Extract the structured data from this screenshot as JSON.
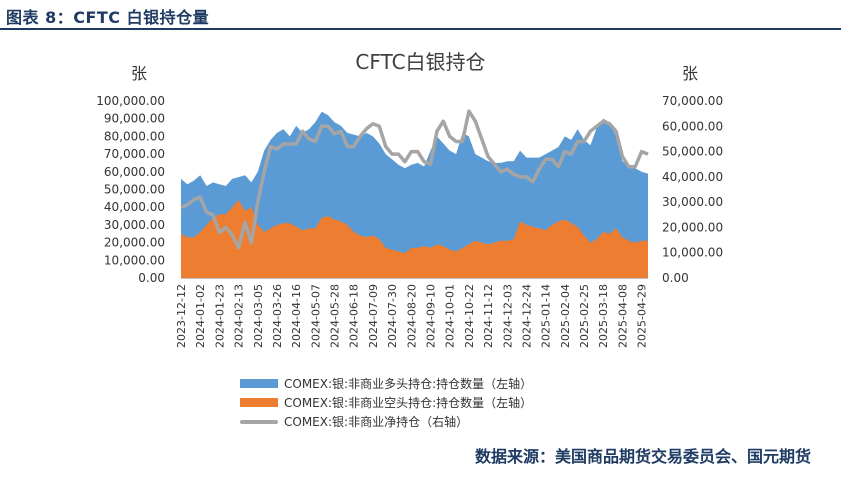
{
  "figure_title": "图表 8：CFTC 白银持仓量",
  "chart_title": "CFTC白银持仓",
  "left_unit": "张",
  "right_unit": "张",
  "source": "数据来源：美国商品期货交易委员会、国元期货",
  "chart_data": {
    "type": "area",
    "x": [
      "2023-12-12",
      "2023-12-19",
      "2023-12-26",
      "2024-01-02",
      "2024-01-09",
      "2024-01-16",
      "2024-01-23",
      "2024-01-30",
      "2024-02-06",
      "2024-02-13",
      "2024-02-20",
      "2024-02-27",
      "2024-03-05",
      "2024-03-12",
      "2024-03-19",
      "2024-03-26",
      "2024-04-02",
      "2024-04-09",
      "2024-04-16",
      "2024-04-23",
      "2024-04-30",
      "2024-05-07",
      "2024-05-14",
      "2024-05-21",
      "2024-05-28",
      "2024-06-04",
      "2024-06-11",
      "2024-06-18",
      "2024-06-25",
      "2024-07-02",
      "2024-07-09",
      "2024-07-16",
      "2024-07-23",
      "2024-07-30",
      "2024-08-06",
      "2024-08-13",
      "2024-08-20",
      "2024-08-27",
      "2024-09-03",
      "2024-09-10",
      "2024-09-17",
      "2024-09-24",
      "2024-10-01",
      "2024-10-08",
      "2024-10-15",
      "2024-10-22",
      "2024-10-29",
      "2024-11-05",
      "2024-11-12",
      "2024-11-19",
      "2024-11-26",
      "2024-12-03",
      "2024-12-10",
      "2024-12-17",
      "2024-12-24",
      "2024-12-31",
      "2025-01-07",
      "2025-01-14",
      "2025-01-21",
      "2025-01-28",
      "2025-02-04",
      "2025-02-11",
      "2025-02-18",
      "2025-02-25",
      "2025-03-04",
      "2025-03-11",
      "2025-03-18",
      "2025-03-25",
      "2025-04-01",
      "2025-04-08",
      "2025-04-15",
      "2025-04-22",
      "2025-04-29",
      "2025-05-06"
    ],
    "x_tick_labels": [
      "2023-12-12",
      "2024-01-02",
      "2024-01-23",
      "2024-02-13",
      "2024-03-05",
      "2024-03-26",
      "2024-04-16",
      "2024-05-07",
      "2024-05-28",
      "2024-06-18",
      "2024-07-09",
      "2024-07-30",
      "2024-08-20",
      "2024-09-10",
      "2024-10-01",
      "2024-10-22",
      "2024-11-12",
      "2024-12-03",
      "2024-12-24",
      "2025-01-14",
      "2025-02-04",
      "2025-02-25",
      "2025-03-18",
      "2025-04-08",
      "2025-04-29"
    ],
    "y_left": {
      "min": 0,
      "max": 100000,
      "step": 10000,
      "tick_labels": [
        "0.00",
        "10,000.00",
        "20,000.00",
        "30,000.00",
        "40,000.00",
        "50,000.00",
        "60,000.00",
        "70,000.00",
        "80,000.00",
        "90,000.00",
        "100,000.00"
      ]
    },
    "y_right": {
      "min": 0,
      "max": 70000,
      "step": 10000,
      "tick_labels": [
        "0.00",
        "10,000.00",
        "20,000.00",
        "30,000.00",
        "40,000.00",
        "50,000.00",
        "60,000.00",
        "70,000.00"
      ]
    },
    "series": [
      {
        "name": "COMEX:银:非商业多头持仓:持仓数量（左轴）",
        "type": "area",
        "axis": "left",
        "color": "#5b9bd5",
        "values": [
          56000,
          53000,
          55000,
          58000,
          52000,
          54000,
          53000,
          52000,
          56000,
          57000,
          58000,
          54000,
          60000,
          72000,
          78000,
          82000,
          84000,
          80000,
          86000,
          82000,
          84000,
          88000,
          94000,
          92000,
          88000,
          86000,
          82000,
          81000,
          80000,
          82000,
          80000,
          76000,
          70000,
          67000,
          64000,
          62000,
          64000,
          65000,
          63000,
          72000,
          80000,
          76000,
          72000,
          70000,
          82000,
          80000,
          70000,
          68000,
          66000,
          65000,
          65000,
          66000,
          66000,
          72000,
          68000,
          68000,
          68000,
          70000,
          72000,
          74000,
          80000,
          78000,
          84000,
          78000,
          75000,
          85000,
          90000,
          88000,
          80000,
          66000,
          64000,
          62000,
          60000,
          59000
        ]
      },
      {
        "name": "COMEX:银:非商业空头持仓:持仓数量（左轴）",
        "type": "area",
        "axis": "left",
        "color": "#ed7d31",
        "values": [
          25000,
          23000,
          23000,
          26000,
          30000,
          34000,
          36000,
          36000,
          40000,
          44000,
          38000,
          40000,
          30000,
          26000,
          28000,
          30000,
          31000,
          31000,
          29000,
          27000,
          28000,
          28000,
          34000,
          35000,
          33000,
          32000,
          30000,
          26000,
          24000,
          23000,
          24000,
          22000,
          17000,
          16000,
          15000,
          14000,
          17000,
          17000,
          18000,
          17000,
          19000,
          18000,
          16000,
          15000,
          17000,
          19000,
          21000,
          20000,
          19000,
          20000,
          21000,
          21000,
          22000,
          32000,
          30000,
          29000,
          28000,
          27000,
          30000,
          32000,
          33000,
          31000,
          29000,
          24000,
          20000,
          22000,
          26000,
          25000,
          28000,
          23000,
          21000,
          20000,
          21000,
          21000
        ]
      },
      {
        "name": "COMEX:银:非商业净持仓（右轴）",
        "type": "line",
        "axis": "right",
        "color": "#a5a5a5",
        "values": [
          28000,
          29000,
          31000,
          32000,
          26000,
          25000,
          18000,
          20000,
          17000,
          12000,
          22000,
          14000,
          30000,
          42000,
          52000,
          51000,
          53000,
          53000,
          53000,
          58000,
          55000,
          54000,
          60000,
          60000,
          57000,
          58000,
          52000,
          52000,
          56000,
          59000,
          61000,
          60000,
          52000,
          49000,
          49000,
          46000,
          50000,
          50000,
          46000,
          45000,
          58000,
          62000,
          56000,
          54000,
          54000,
          66000,
          62000,
          55000,
          48000,
          45000,
          42000,
          43000,
          41000,
          40000,
          40000,
          38000,
          43000,
          47000,
          47000,
          44000,
          50000,
          49000,
          54000,
          54000,
          58000,
          60000,
          62000,
          61000,
          58000,
          48000,
          44000,
          44000,
          50000,
          49000
        ]
      }
    ]
  }
}
